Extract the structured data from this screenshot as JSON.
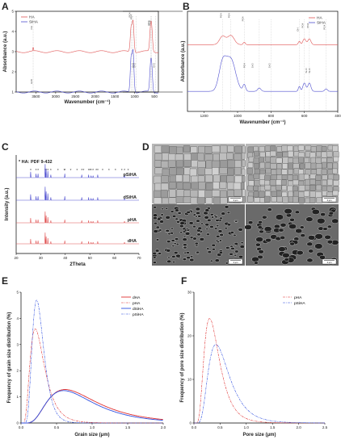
{
  "panels": {
    "A": {
      "letter": "A"
    },
    "B": {
      "letter": "B"
    },
    "C": {
      "letter": "C"
    },
    "D": {
      "letter": "D",
      "scale_label": "2 μm"
    },
    "E": {
      "letter": "E"
    },
    "F": {
      "letter": "F"
    }
  },
  "colors": {
    "ha": "#e05555",
    "siha": "#5050d0",
    "dash_ha": "#e03030",
    "dash_siha": "#3050e0",
    "xrd_marker": "#20a0c0"
  },
  "chart_data": [
    {
      "id": "A",
      "type": "line",
      "xlabel": "Wavenumber (cm⁻¹)",
      "ylabel": "Absorbance (a.u.)",
      "xlim": [
        4000,
        400
      ],
      "ylim": [
        1,
        5
      ],
      "xticks": [
        3500,
        3000,
        2500,
        2000,
        1500,
        1000,
        500
      ],
      "yticks": [
        1,
        2,
        3,
        4,
        5
      ],
      "legend": [
        "HA",
        "SiHA"
      ],
      "legend_position": "top-left",
      "annotations": [
        "OH",
        "PO4",
        "PO4",
        "PO4",
        "PO4",
        "H2O",
        "Si-O",
        "Si-O",
        "Si-O"
      ],
      "series": [
        {
          "name": "HA",
          "baseline": 3.0,
          "peaks_x": [
            1090,
            1040,
            600,
            570
          ],
          "peaks_h": [
            1.2,
            1.5,
            0.9,
            1.0
          ]
        },
        {
          "name": "SiHA",
          "baseline": 1.0,
          "peaks_x": [
            1090,
            1040,
            600,
            570
          ],
          "peaks_h": [
            1.7,
            2.0,
            1.0,
            1.1
          ]
        }
      ]
    },
    {
      "id": "B",
      "type": "line",
      "xlabel": "Wavenumber (cm⁻¹)",
      "ylabel": "Absorbance (a.u.)",
      "xlim": [
        1300,
        400
      ],
      "ylim": [
        0,
        6
      ],
      "xticks": [
        1200,
        1000,
        800,
        600,
        400
      ],
      "legend": [
        "HA",
        "SiHA"
      ],
      "legend_position": "top-right",
      "annotations": [
        "PO4",
        "PO4",
        "PO4",
        "OH",
        "PO4",
        "PO4",
        "PO4",
        "PO4",
        "Si-O",
        "Si-O",
        "Si-O",
        "Si-O"
      ],
      "series": [
        {
          "name": "HA",
          "baseline": 4.0
        },
        {
          "name": "SiHA",
          "baseline": 1.2
        }
      ]
    },
    {
      "id": "C",
      "type": "line",
      "title": "* HA: PDF 9-432",
      "xlabel": "2Theta",
      "ylabel": "Intensity (a.u.)",
      "xlim": [
        20,
        70
      ],
      "xticks": [
        20,
        30,
        40,
        50,
        60,
        70
      ],
      "series_labels": [
        "pSiHA",
        "dSiHA",
        "pHA",
        "dHA"
      ],
      "peaks_2theta": [
        25.9,
        28.1,
        28.9,
        31.8,
        32.2,
        32.9,
        34.1,
        39.8,
        46.7,
        49.5,
        50.5,
        51.3,
        53.2,
        64.1
      ]
    },
    {
      "id": "E",
      "type": "line",
      "xlabel": "Grain size (μm)",
      "ylabel": "Frequency of grain size distribution (%)",
      "xlim": [
        0,
        2.0
      ],
      "ylim": [
        0,
        5
      ],
      "xticks": [
        0.0,
        0.5,
        1.0,
        1.5,
        2.0
      ],
      "yticks": [
        0,
        1,
        2,
        3,
        4,
        5
      ],
      "legend_position": "top-right",
      "series": [
        {
          "name": "dHA",
          "peak_x": 0.62,
          "peak_y": 1.28,
          "spread": 0.38
        },
        {
          "name": "pHA",
          "peak_x": 0.2,
          "peak_y": 3.6,
          "spread": 0.11
        },
        {
          "name": "dSiHA",
          "peak_x": 0.6,
          "peak_y": 1.24,
          "spread": 0.36
        },
        {
          "name": "pSiHA",
          "peak_x": 0.22,
          "peak_y": 4.7,
          "spread": 0.09
        }
      ]
    },
    {
      "id": "F",
      "type": "line",
      "xlabel": "Pore size (μm)",
      "ylabel": "Frequency of pore size distribution (%)",
      "xlim": [
        0,
        2.5
      ],
      "ylim": [
        0,
        30
      ],
      "xticks": [
        0.0,
        0.5,
        1.0,
        1.5,
        2.0,
        2.5
      ],
      "yticks": [
        0,
        10,
        20,
        30
      ],
      "legend_position": "top-right",
      "series": [
        {
          "name": "pHA",
          "peak_x": 0.3,
          "peak_y": 24.0,
          "spread": 0.16
        },
        {
          "name": "pSiHA",
          "peak_x": 0.42,
          "peak_y": 18.0,
          "spread": 0.22
        }
      ]
    }
  ]
}
